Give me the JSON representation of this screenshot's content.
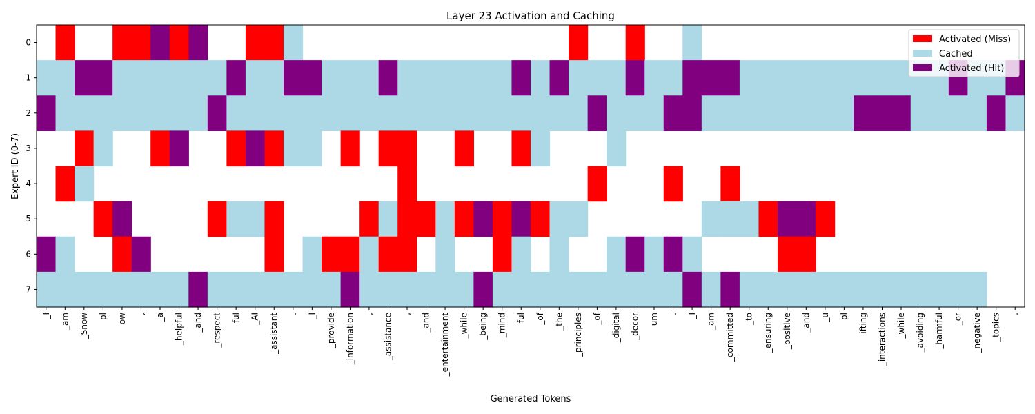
{
  "chart_data": {
    "type": "heatmap",
    "title": "Layer 23 Activation and Caching",
    "xlabel": "Generated Tokens",
    "ylabel": "Expert ID (0-7)",
    "y_ticks": [
      "0",
      "1",
      "2",
      "3",
      "4",
      "5",
      "6",
      "7"
    ],
    "tokens": [
      "_I",
      "_am",
      "_Snow",
      "pl",
      "ow",
      ",",
      "_a",
      "_helpful",
      "_and",
      "_respect",
      "ful",
      "_AI",
      "_assistant",
      ".",
      "_I",
      "_provide",
      "_information",
      ",",
      "_assistance",
      ",",
      "_and",
      "_entertainment",
      "_while",
      "_being",
      "_mind",
      "ful",
      "_of",
      "_the",
      "_principles",
      "_of",
      "_digital",
      "_decor",
      "um",
      ".",
      "_I",
      "_am",
      "_committed",
      "_to",
      "_ensuring",
      "_positive",
      "_and",
      "_u",
      "pl",
      "ifting",
      "_interactions",
      "_while",
      "_avoiding",
      "_harmful",
      "_or",
      "_negative",
      "_topics",
      "."
    ],
    "legend": [
      {
        "label": "Activated (Miss)",
        "state": 1
      },
      {
        "label": "Cached",
        "state": 2
      },
      {
        "label": "Activated (Hit)",
        "state": 3
      }
    ],
    "legend_position": "top-right",
    "colors": {
      "0": "#ffffff",
      "1": "#ff0000",
      "2": "#add8e6",
      "3": "#800080"
    },
    "grid": [
      "0100113130011200000000000000100100200000000000000000",
      "2233222222322332223222222323222322333222222222223223",
      "3222222223222222222222222222232223322222222333222232",
      "0012001300131220101100100120002000000000000000000000",
      "0120000000000000000100000000010001001000000000000000",
      "0001300001221000012112131312200000022213310000000000",
      "3200130000001021121102001202002323200001100000000000",
      "2222222232222222322222232222222222323222222222222200"
    ],
    "grid_legend": "Each row string lists one character per token: 0 = inactive, 1 = Activated (Miss), 2 = Cached, 3 = Activated (Hit)"
  }
}
